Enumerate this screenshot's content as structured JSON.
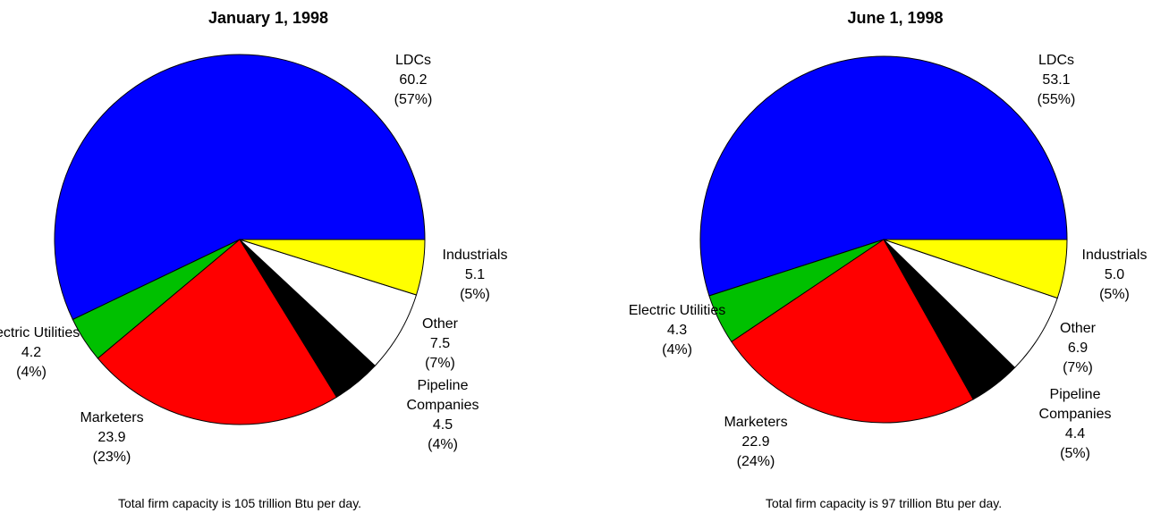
{
  "chart_data": [
    {
      "type": "pie",
      "title": "January 1, 1998",
      "categories": [
        "LDCs",
        "Electric Utilities",
        "Marketers",
        "Pipeline Companies",
        "Other",
        "Industrials"
      ],
      "values": [
        60.2,
        4.2,
        23.9,
        4.5,
        7.5,
        5.1
      ],
      "value_labels": [
        "60.2",
        "4.2",
        "23.9",
        "4.5",
        "7.5",
        "5.1"
      ],
      "shares": [
        57,
        4,
        23,
        4,
        7,
        5
      ],
      "share_labels": [
        "(57%)",
        "(4%)",
        "(23%)",
        "(4%)",
        "(7%)",
        "(5%)"
      ],
      "colors": [
        "#0000ff",
        "#00c000",
        "#ff0000",
        "#000000",
        "#ffffff",
        "#ffff00"
      ],
      "note": "Total firm capacity is 105 trillion Btu per day."
    },
    {
      "type": "pie",
      "title": "June 1, 1998",
      "categories": [
        "LDCs",
        "Electric Utilities",
        "Marketers",
        "Pipeline Companies",
        "Other",
        "Industrials"
      ],
      "values": [
        53.1,
        4.3,
        22.9,
        4.4,
        6.9,
        5.0
      ],
      "value_labels": [
        "53.1",
        "4.3",
        "22.9",
        "4.4",
        "6.9",
        "5.0"
      ],
      "shares": [
        55,
        4,
        24,
        5,
        7,
        5
      ],
      "share_labels": [
        "(55%)",
        "(4%)",
        "(24%)",
        "(5%)",
        "(7%)",
        "(5%)"
      ],
      "colors": [
        "#0000ff",
        "#00c000",
        "#ff0000",
        "#000000",
        "#ffffff",
        "#ffff00"
      ],
      "note": "Total firm capacity is 97 trillion Btu per day."
    }
  ]
}
